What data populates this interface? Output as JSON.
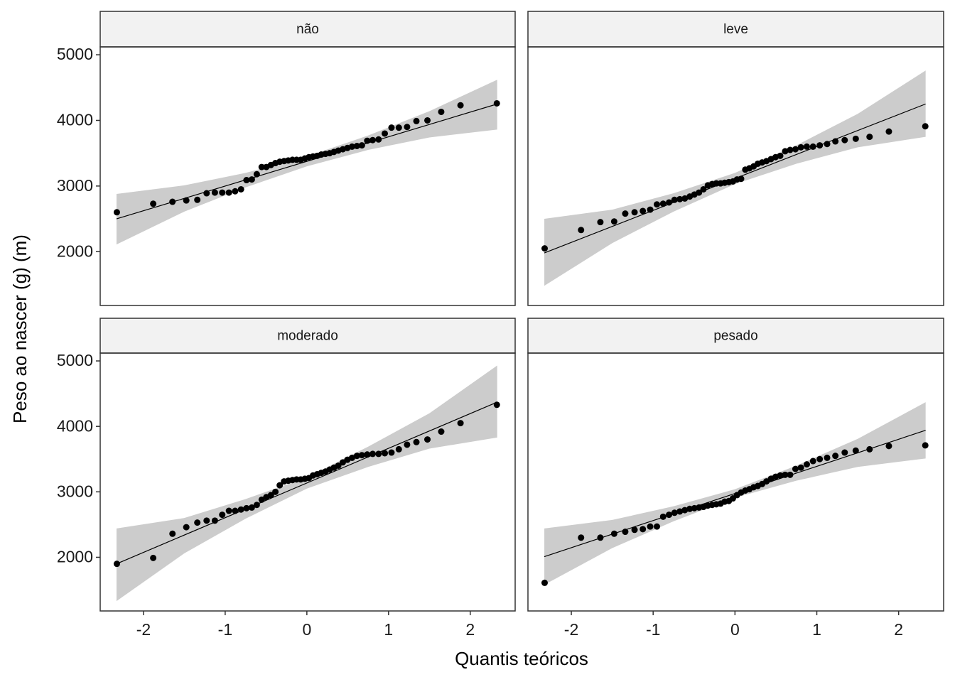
{
  "xlabel": "Quantis teóricos",
  "ylabel": "Peso ao nascer (g) (m)",
  "xlim": [
    -2.53,
    2.55
  ],
  "ylim": [
    1180,
    5120
  ],
  "xticks": [
    -2,
    -1,
    0,
    1,
    2
  ],
  "yticks": [
    2000,
    3000,
    4000,
    5000
  ],
  "chart_data": [
    {
      "type": "scatter",
      "title": "não",
      "color": "#000000",
      "band_color": "#cccccc",
      "x": [
        -2.326,
        -1.881,
        -1.645,
        -1.476,
        -1.341,
        -1.227,
        -1.126,
        -1.036,
        -0.954,
        -0.878,
        -0.806,
        -0.739,
        -0.674,
        -0.613,
        -0.553,
        -0.496,
        -0.44,
        -0.385,
        -0.332,
        -0.279,
        -0.228,
        -0.176,
        -0.126,
        -0.075,
        -0.025,
        0.025,
        0.075,
        0.126,
        0.176,
        0.228,
        0.279,
        0.332,
        0.385,
        0.44,
        0.496,
        0.553,
        0.613,
        0.674,
        0.739,
        0.806,
        0.878,
        0.954,
        1.036,
        1.126,
        1.227,
        1.341,
        1.476,
        1.645,
        1.881,
        2.326
      ],
      "values": [
        2600,
        2730,
        2760,
        2780,
        2790,
        2890,
        2900,
        2900,
        2900,
        2920,
        2950,
        3090,
        3100,
        3180,
        3290,
        3290,
        3320,
        3350,
        3370,
        3380,
        3390,
        3400,
        3400,
        3400,
        3420,
        3440,
        3450,
        3460,
        3480,
        3490,
        3500,
        3520,
        3540,
        3560,
        3580,
        3600,
        3610,
        3620,
        3690,
        3700,
        3710,
        3800,
        3890,
        3890,
        3900,
        3990,
        4000,
        4130,
        4230,
        4260
      ],
      "fit": {
        "x": [
          -2.33,
          2.33
        ],
        "values": [
          2500,
          4250
        ]
      },
      "band": {
        "x": [
          -2.33,
          -1.5,
          -0.75,
          0,
          0.75,
          1.5,
          2.33
        ],
        "lower": [
          2110,
          2610,
          2980,
          3300,
          3550,
          3740,
          3860
        ],
        "upper": [
          2880,
          3010,
          3200,
          3450,
          3770,
          4140,
          4620
        ]
      }
    },
    {
      "type": "scatter",
      "title": "leve",
      "color": "#000000",
      "band_color": "#cccccc",
      "x": [
        -2.326,
        -1.881,
        -1.645,
        -1.476,
        -1.341,
        -1.227,
        -1.126,
        -1.036,
        -0.954,
        -0.878,
        -0.806,
        -0.739,
        -0.674,
        -0.613,
        -0.553,
        -0.496,
        -0.44,
        -0.385,
        -0.332,
        -0.279,
        -0.228,
        -0.176,
        -0.126,
        -0.075,
        -0.025,
        0.025,
        0.075,
        0.126,
        0.176,
        0.228,
        0.279,
        0.332,
        0.385,
        0.44,
        0.496,
        0.553,
        0.613,
        0.674,
        0.739,
        0.806,
        0.878,
        0.954,
        1.036,
        1.126,
        1.227,
        1.341,
        1.476,
        1.645,
        1.881,
        2.326
      ],
      "values": [
        2050,
        2330,
        2450,
        2460,
        2580,
        2600,
        2620,
        2640,
        2720,
        2730,
        2750,
        2790,
        2800,
        2810,
        2840,
        2870,
        2900,
        2950,
        3010,
        3030,
        3040,
        3040,
        3050,
        3060,
        3070,
        3100,
        3110,
        3250,
        3270,
        3300,
        3340,
        3360,
        3380,
        3410,
        3440,
        3460,
        3530,
        3550,
        3560,
        3590,
        3600,
        3600,
        3620,
        3640,
        3680,
        3700,
        3720,
        3750,
        3830,
        3910
      ],
      "fit": {
        "x": [
          -2.33,
          2.33
        ],
        "values": [
          1980,
          4250
        ]
      },
      "band": {
        "x": [
          -2.33,
          -1.5,
          -0.75,
          0,
          0.75,
          1.5,
          2.33
        ],
        "lower": [
          1480,
          2130,
          2610,
          3030,
          3340,
          3590,
          3750
        ],
        "upper": [
          2500,
          2640,
          2890,
          3200,
          3620,
          4100,
          4760
        ]
      }
    },
    {
      "type": "scatter",
      "title": "moderado",
      "color": "#000000",
      "band_color": "#cccccc",
      "x": [
        -2.326,
        -1.881,
        -1.645,
        -1.476,
        -1.341,
        -1.227,
        -1.126,
        -1.036,
        -0.954,
        -0.878,
        -0.806,
        -0.739,
        -0.674,
        -0.613,
        -0.553,
        -0.496,
        -0.44,
        -0.385,
        -0.332,
        -0.279,
        -0.228,
        -0.176,
        -0.126,
        -0.075,
        -0.025,
        0.025,
        0.075,
        0.126,
        0.176,
        0.228,
        0.279,
        0.332,
        0.385,
        0.44,
        0.496,
        0.553,
        0.613,
        0.674,
        0.739,
        0.806,
        0.878,
        0.954,
        1.036,
        1.126,
        1.227,
        1.341,
        1.476,
        1.645,
        1.881,
        2.326
      ],
      "values": [
        1900,
        1990,
        2360,
        2460,
        2530,
        2560,
        2560,
        2650,
        2710,
        2710,
        2730,
        2750,
        2760,
        2800,
        2880,
        2920,
        2950,
        3000,
        3100,
        3160,
        3170,
        3180,
        3190,
        3190,
        3200,
        3210,
        3250,
        3270,
        3290,
        3310,
        3340,
        3370,
        3400,
        3450,
        3490,
        3520,
        3550,
        3560,
        3570,
        3580,
        3580,
        3590,
        3600,
        3650,
        3720,
        3760,
        3800,
        3920,
        4050,
        4330
      ],
      "fit": {
        "x": [
          -2.33,
          2.33
        ],
        "values": [
          1900,
          4370
        ]
      },
      "band": {
        "x": [
          -2.33,
          -1.5,
          -0.75,
          0,
          0.75,
          1.5,
          2.33
        ],
        "lower": [
          1330,
          2060,
          2590,
          3050,
          3380,
          3660,
          3830
        ],
        "upper": [
          2440,
          2600,
          2890,
          3220,
          3690,
          4200,
          4930
        ]
      }
    },
    {
      "type": "scatter",
      "title": "pesado",
      "color": "#000000",
      "band_color": "#cccccc",
      "x": [
        -2.326,
        -1.881,
        -1.645,
        -1.476,
        -1.341,
        -1.227,
        -1.126,
        -1.036,
        -0.954,
        -0.878,
        -0.806,
        -0.739,
        -0.674,
        -0.613,
        -0.553,
        -0.496,
        -0.44,
        -0.385,
        -0.332,
        -0.279,
        -0.228,
        -0.176,
        -0.126,
        -0.075,
        -0.025,
        0.025,
        0.075,
        0.126,
        0.176,
        0.228,
        0.279,
        0.332,
        0.385,
        0.44,
        0.496,
        0.553,
        0.613,
        0.674,
        0.739,
        0.806,
        0.878,
        0.954,
        1.036,
        1.126,
        1.227,
        1.341,
        1.476,
        1.645,
        1.881,
        2.326
      ],
      "values": [
        1610,
        2300,
        2300,
        2360,
        2390,
        2420,
        2430,
        2470,
        2470,
        2620,
        2650,
        2680,
        2700,
        2720,
        2740,
        2750,
        2760,
        2770,
        2790,
        2800,
        2810,
        2820,
        2850,
        2860,
        2900,
        2950,
        2990,
        3020,
        3040,
        3070,
        3090,
        3120,
        3160,
        3200,
        3230,
        3250,
        3260,
        3260,
        3350,
        3370,
        3420,
        3470,
        3500,
        3520,
        3550,
        3600,
        3630,
        3650,
        3700,
        3710
      ],
      "fit": {
        "x": [
          -2.33,
          2.33
        ],
        "values": [
          2010,
          3940
        ]
      },
      "band": {
        "x": [
          -2.33,
          -1.5,
          -0.75,
          0,
          0.75,
          1.5,
          2.33
        ],
        "lower": [
          1580,
          2140,
          2550,
          2910,
          3170,
          3380,
          3510
        ],
        "upper": [
          2440,
          2570,
          2780,
          3040,
          3400,
          3810,
          4370
        ]
      }
    }
  ]
}
